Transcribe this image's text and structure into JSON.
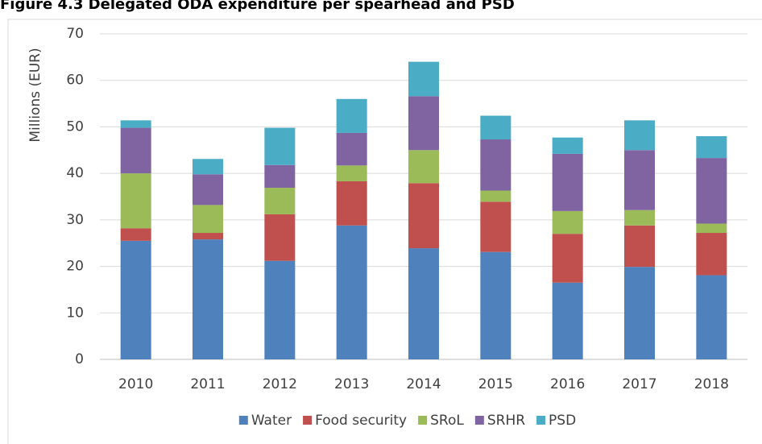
{
  "chart_data": {
    "type": "stacked_bar",
    "title": "Figure 4.3 Delegated ODA expenditure per spearhead and PSD",
    "y_label": "Millions (EUR)",
    "categories": [
      "2010",
      "2011",
      "2012",
      "2013",
      "2014",
      "2015",
      "2016",
      "2017",
      "2018"
    ],
    "series": [
      {
        "name": "Water",
        "color": "#4f81bd",
        "values": [
          25.5,
          25.8,
          21.2,
          28.8,
          23.9,
          23.1,
          16.5,
          19.9,
          18.1
        ]
      },
      {
        "name": "Food security",
        "color": "#c0504d",
        "values": [
          2.7,
          1.4,
          10.0,
          9.5,
          14.0,
          10.8,
          10.5,
          8.9,
          9.1
        ]
      },
      {
        "name": "SRoL",
        "color": "#9bbb59",
        "values": [
          11.8,
          6.0,
          5.7,
          3.4,
          7.1,
          2.4,
          4.9,
          3.3,
          2.0
        ]
      },
      {
        "name": "SRHR",
        "color": "#8064a2",
        "values": [
          9.8,
          6.6,
          4.9,
          7.0,
          11.6,
          11.0,
          12.3,
          12.9,
          14.1
        ]
      },
      {
        "name": "PSD",
        "color": "#4bacc6",
        "values": [
          1.6,
          3.3,
          8.0,
          7.3,
          7.4,
          5.1,
          3.5,
          6.4,
          4.7
        ]
      }
    ],
    "ylim": [
      0,
      70
    ],
    "yticks": [
      0,
      10,
      20,
      30,
      40,
      50,
      60,
      70
    ],
    "grid": true,
    "legend": "bottom"
  }
}
